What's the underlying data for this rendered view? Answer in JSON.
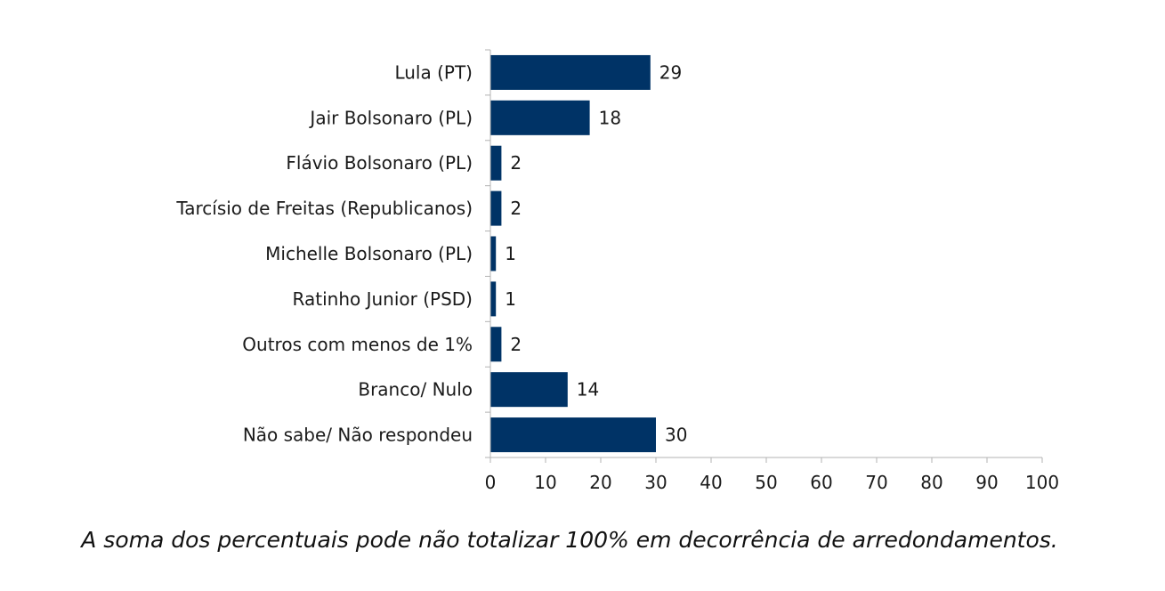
{
  "chart_data": {
    "type": "bar",
    "orientation": "horizontal",
    "categories": [
      "Lula (PT)",
      "Jair Bolsonaro (PL)",
      "Flávio Bolsonaro (PL)",
      "Tarcísio de Freitas (Republicanos)",
      "Michelle Bolsonaro (PL)",
      "Ratinho Junior (PSD)",
      "Outros com menos de 1%",
      "Branco/ Nulo",
      "Não sabe/ Não respondeu"
    ],
    "values": [
      29,
      18,
      2,
      2,
      1,
      1,
      2,
      14,
      30
    ],
    "xlim": [
      0,
      100
    ],
    "xticks": [
      0,
      10,
      20,
      30,
      40,
      50,
      60,
      70,
      80,
      90,
      100
    ],
    "grid": false,
    "data_labels": true,
    "bar_color": "#003366"
  },
  "footnote": "A soma dos percentuais pode não totalizar 100% em decorrência de arredondamentos."
}
